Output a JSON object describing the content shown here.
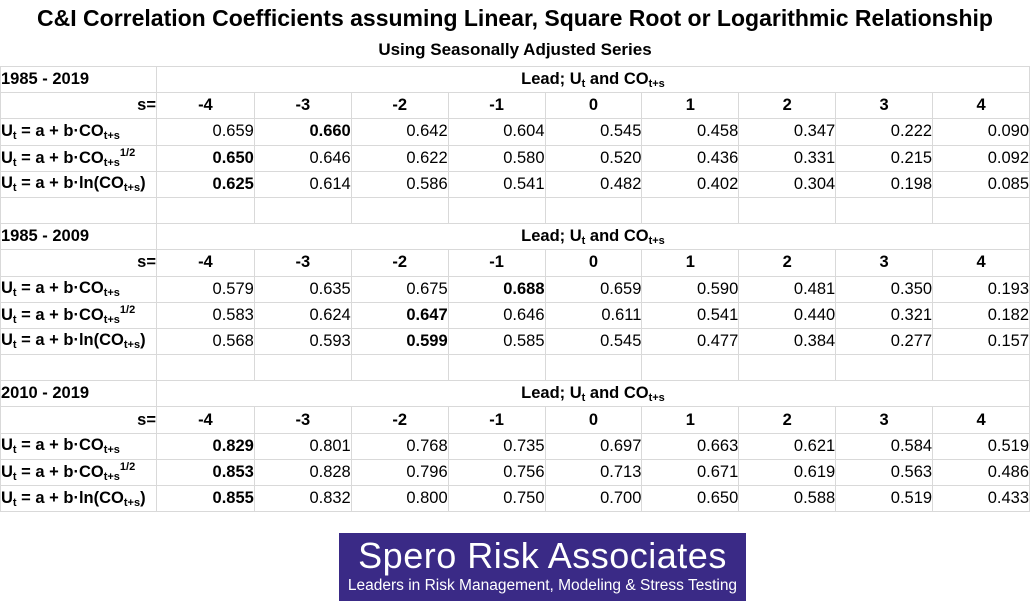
{
  "title": "C&I Correlation Coefficients assuming Linear, Square Root or Logarithmic Relationship",
  "subtitle": "Using Seasonally Adjusted Series",
  "lead_label": "Lead; U",
  "lead_sub_t": "t",
  "lead_and": " and CO",
  "lead_sub_ts": "t+s",
  "s_label": "s=",
  "s_values": [
    "-4",
    "-3",
    "-2",
    "-1",
    "0",
    "1",
    "2",
    "3",
    "4"
  ],
  "row_labels": {
    "prefix": "U",
    "sub_t": "t",
    "eq": " = a + b·CO",
    "sub_ts": "t+s",
    "sup_half": "1/2",
    "log_eq": " = a + b·ln(CO",
    "log_close": ")"
  },
  "chart_data": {
    "type": "table",
    "title": "C&I Correlation Coefficients assuming Linear, Square Root or Logarithmic Relationship",
    "subtitle": "Using Seasonally Adjusted Series",
    "columns": [
      "-4",
      "-3",
      "-2",
      "-1",
      "0",
      "1",
      "2",
      "3",
      "4"
    ],
    "blocks": [
      {
        "period": "1985 - 2019",
        "rows": [
          {
            "model": "linear",
            "values": [
              "0.659",
              "0.660",
              "0.642",
              "0.604",
              "0.545",
              "0.458",
              "0.347",
              "0.222",
              "0.090"
            ],
            "bold": [
              1
            ]
          },
          {
            "model": "sqrt",
            "values": [
              "0.650",
              "0.646",
              "0.622",
              "0.580",
              "0.520",
              "0.436",
              "0.331",
              "0.215",
              "0.092"
            ],
            "bold": [
              0
            ]
          },
          {
            "model": "log",
            "values": [
              "0.625",
              "0.614",
              "0.586",
              "0.541",
              "0.482",
              "0.402",
              "0.304",
              "0.198",
              "0.085"
            ],
            "bold": [
              0
            ]
          }
        ]
      },
      {
        "period": "1985 - 2009",
        "rows": [
          {
            "model": "linear",
            "values": [
              "0.579",
              "0.635",
              "0.675",
              "0.688",
              "0.659",
              "0.590",
              "0.481",
              "0.350",
              "0.193"
            ],
            "bold": [
              3
            ]
          },
          {
            "model": "sqrt",
            "values": [
              "0.583",
              "0.624",
              "0.647",
              "0.646",
              "0.611",
              "0.541",
              "0.440",
              "0.321",
              "0.182"
            ],
            "bold": [
              2
            ]
          },
          {
            "model": "log",
            "values": [
              "0.568",
              "0.593",
              "0.599",
              "0.585",
              "0.545",
              "0.477",
              "0.384",
              "0.277",
              "0.157"
            ],
            "bold": [
              2
            ]
          }
        ]
      },
      {
        "period": "2010 - 2019",
        "rows": [
          {
            "model": "linear",
            "values": [
              "0.829",
              "0.801",
              "0.768",
              "0.735",
              "0.697",
              "0.663",
              "0.621",
              "0.584",
              "0.519"
            ],
            "bold": [
              0
            ]
          },
          {
            "model": "sqrt",
            "values": [
              "0.853",
              "0.828",
              "0.796",
              "0.756",
              "0.713",
              "0.671",
              "0.619",
              "0.563",
              "0.486"
            ],
            "bold": [
              0
            ]
          },
          {
            "model": "log",
            "values": [
              "0.855",
              "0.832",
              "0.800",
              "0.750",
              "0.700",
              "0.650",
              "0.588",
              "0.519",
              "0.433"
            ],
            "bold": [
              0
            ]
          }
        ]
      }
    ]
  },
  "logo": {
    "name": "Spero Risk Associates",
    "tagline": "Leaders in Risk Management, Modeling & Stress Testing",
    "bg_color": "#3a2a86"
  }
}
